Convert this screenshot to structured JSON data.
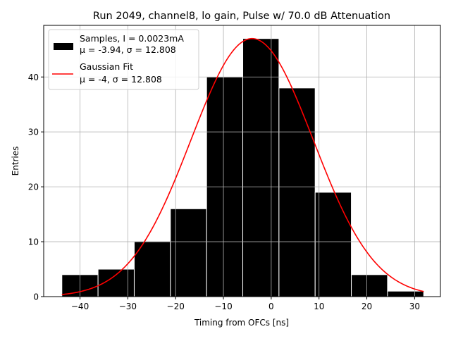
{
  "chart_data": {
    "type": "bar",
    "title": "Run 2049, channel8, lo gain, Pulse w/ 70.0 dB Attenuation",
    "xlabel": "Timing from OFCs [ns]",
    "ylabel": "Entries",
    "xlim": [
      -47.6,
      35.4
    ],
    "ylim": [
      0,
      49.4
    ],
    "grid": true,
    "legend_position": "top-left",
    "xticks": [
      -40,
      -30,
      -20,
      -10,
      0,
      10,
      20,
      30
    ],
    "yticks": [
      0,
      10,
      20,
      30,
      40
    ],
    "histogram": {
      "name": "Samples, I = 0.0023mA",
      "name_line2": "μ = -3.94, σ = 12.808",
      "color": "#000000",
      "edge_color": "#ffffff",
      "bin_edges": [
        -43.8,
        -36.23,
        -28.66,
        -21.09,
        -13.52,
        -5.95,
        1.62,
        9.19,
        16.76,
        24.33,
        31.9
      ],
      "counts": [
        4,
        5,
        10,
        16,
        40,
        47,
        38,
        19,
        4,
        1
      ]
    },
    "fit": {
      "name": "Gaussian Fit",
      "name_line2": "μ = -4, σ = 12.808",
      "color": "#ff0000",
      "amplitude": 47,
      "mu": -4,
      "sigma": 12.808,
      "x_range": [
        -43.8,
        31.9
      ]
    }
  }
}
